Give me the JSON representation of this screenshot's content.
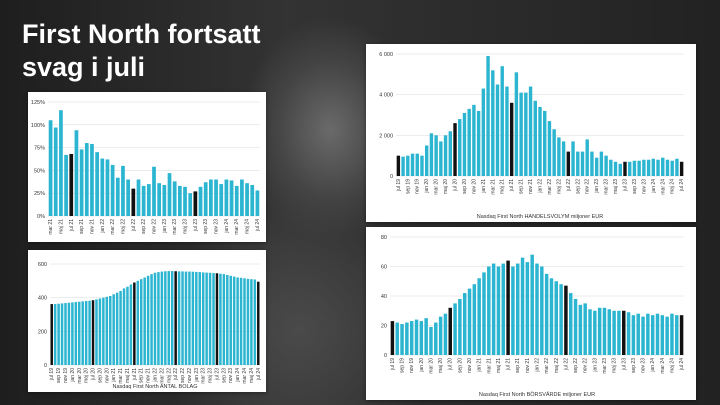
{
  "slide": {
    "title_line1": "First North fortsatt",
    "title_line2": "svag i juli"
  },
  "colors": {
    "bar": "#2bb5d0",
    "highlight": "#111111",
    "grid": "#d8d8d8"
  },
  "chart_data": [
    {
      "id": "p1",
      "type": "bar",
      "title": "",
      "xlabel": "",
      "ylabel": "",
      "ylim": [
        0,
        125
      ],
      "yticks": [
        0,
        25,
        50,
        75,
        100,
        125
      ],
      "ytick_labels": [
        "0%",
        "25%",
        "50%",
        "75%",
        "100%",
        "125%"
      ],
      "grid": true,
      "label_every": 2,
      "highlight_indices": [
        4,
        16,
        28
      ],
      "categories": [
        "mar 21",
        "apr 21",
        "maj 21",
        "jun 21",
        "jul 21",
        "aug 21",
        "sep 21",
        "okt 21",
        "nov 21",
        "dec 21",
        "jan 22",
        "feb 22",
        "mar 22",
        "apr 22",
        "maj 22",
        "jun 22",
        "jul 22",
        "aug 22",
        "sep 22",
        "okt 22",
        "nov 22",
        "dec 22",
        "jan 23",
        "feb 23",
        "mar 23",
        "apr 23",
        "maj 23",
        "jun 23",
        "jul 23",
        "aug 23",
        "sep 23",
        "okt 23",
        "nov 23",
        "dec 23",
        "jan 24",
        "feb 24",
        "mar 24",
        "apr 24",
        "maj 24",
        "jun 24",
        "jul 24"
      ],
      "values": [
        105,
        97,
        116,
        67,
        68,
        94,
        73,
        80,
        79,
        70,
        63,
        62,
        56,
        42,
        55,
        40,
        30,
        40,
        33,
        35,
        54,
        36,
        34,
        47,
        38,
        33,
        32,
        25,
        27,
        32,
        37,
        40,
        40,
        35,
        40,
        39,
        33,
        40,
        36,
        34,
        28
      ],
      "x_tick_labels": [
        "mar 21",
        "maj 21",
        "jul 21",
        "sep 21",
        "nov 21",
        "jan 22",
        "mar 22",
        "maj 22",
        "jul 22",
        "sep 22",
        "nov 22",
        "jan 23",
        "mar 23",
        "maj 23",
        "jul 23",
        "sep 23",
        "nov 23",
        "jan 24",
        "mar 24",
        "maj 24",
        "jul 24"
      ]
    },
    {
      "id": "p2",
      "type": "bar",
      "title": "",
      "xlabel": "Nasdaq First North HANDELSVOLYM miljoner EUR",
      "ylabel": "",
      "ylim": [
        0,
        6000
      ],
      "yticks": [
        0,
        2000,
        4000,
        6000
      ],
      "ytick_labels": [
        "0",
        "2 000",
        "4 000",
        "6 000"
      ],
      "grid": true,
      "label_every": 2,
      "highlight_indices": [
        0,
        12,
        24,
        36,
        48,
        60
      ],
      "categories": [
        "jul 19",
        "aug 19",
        "sep 19",
        "okt 19",
        "nov 19",
        "dec 19",
        "jan 20",
        "feb 20",
        "mar 20",
        "apr 20",
        "maj 20",
        "jun 20",
        "jul 20",
        "aug 20",
        "sep 20",
        "okt 20",
        "nov 20",
        "dec 20",
        "jan 21",
        "feb 21",
        "mar 21",
        "apr 21",
        "maj 21",
        "jun 21",
        "jul 21",
        "aug 21",
        "sep 21",
        "okt 21",
        "nov 21",
        "dec 21",
        "jan 22",
        "feb 22",
        "mar 22",
        "apr 22",
        "maj 22",
        "jun 22",
        "jul 22",
        "aug 22",
        "sep 22",
        "okt 22",
        "nov 22",
        "dec 22",
        "jan 23",
        "feb 23",
        "mar 23",
        "apr 23",
        "maj 23",
        "jun 23",
        "jul 23",
        "aug 23",
        "sep 23",
        "okt 23",
        "nov 23",
        "dec 23",
        "jan 24",
        "feb 24",
        "mar 24",
        "apr 24",
        "maj 24",
        "jun 24",
        "jul 24"
      ],
      "values": [
        1000,
        950,
        1000,
        1100,
        1100,
        1000,
        1500,
        2100,
        2000,
        1700,
        2000,
        2200,
        2600,
        2800,
        3100,
        3300,
        3500,
        3200,
        4300,
        5900,
        5200,
        4500,
        5400,
        4400,
        3600,
        5100,
        4100,
        4100,
        4400,
        3700,
        3400,
        3200,
        2700,
        2300,
        1900,
        1700,
        1200,
        1700,
        1200,
        1200,
        1800,
        1200,
        900,
        1200,
        1000,
        800,
        700,
        600,
        700,
        700,
        750,
        750,
        800,
        800,
        850,
        800,
        900,
        800,
        750,
        850,
        700
      ],
      "x_tick_labels": [
        "jul 19",
        "sep 19",
        "nov 19",
        "jan 20",
        "mar 20",
        "maj 20",
        "jul 20",
        "sep 20",
        "nov 20",
        "jan 21",
        "mar 21",
        "maj 21",
        "jul 21",
        "sep 21",
        "nov 21",
        "jan 22",
        "mar 22",
        "maj 22",
        "jul 22",
        "sep 22",
        "nov 22",
        "jan 23",
        "mar 23",
        "maj 23",
        "jul 23",
        "sep 23",
        "nov 23",
        "jan 24",
        "mar 24",
        "maj 24",
        "jul 24"
      ]
    },
    {
      "id": "p3",
      "type": "bar",
      "title": "",
      "xlabel": "Nasdaq First North ANTAL BOLAG",
      "ylabel": "",
      "ylim": [
        0,
        600
      ],
      "yticks": [
        0,
        200,
        400,
        600
      ],
      "ytick_labels": [
        "0",
        "200",
        "400",
        "600"
      ],
      "grid": true,
      "label_every": 2,
      "highlight_indices": [
        0,
        12,
        24,
        36,
        48,
        60
      ],
      "categories": [
        "jul 19",
        "aug 19",
        "sep 19",
        "okt 19",
        "nov 19",
        "dec 19",
        "jan 20",
        "feb 20",
        "mar 20",
        "apr 20",
        "maj 20",
        "jun 20",
        "jul 20",
        "aug 20",
        "sep 20",
        "okt 20",
        "nov 20",
        "dec 20",
        "jan 21",
        "feb 21",
        "mar 21",
        "apr 21",
        "maj 21",
        "jun 21",
        "jul 21",
        "aug 21",
        "sep 21",
        "okt 21",
        "nov 21",
        "dec 21",
        "jan 22",
        "feb 22",
        "mar 22",
        "apr 22",
        "maj 22",
        "jun 22",
        "jul 22",
        "aug 22",
        "sep 22",
        "okt 22",
        "nov 22",
        "dec 22",
        "jan 23",
        "feb 23",
        "mar 23",
        "apr 23",
        "maj 23",
        "jun 23",
        "jul 23",
        "aug 23",
        "sep 23",
        "okt 23",
        "nov 23",
        "dec 23",
        "jan 24",
        "feb 24",
        "mar 24",
        "apr 24",
        "maj 24",
        "jun 24",
        "jul 24"
      ],
      "values": [
        362,
        362,
        364,
        366,
        368,
        370,
        372,
        374,
        376,
        378,
        380,
        382,
        385,
        390,
        395,
        400,
        405,
        410,
        420,
        430,
        440,
        455,
        465,
        478,
        490,
        500,
        510,
        520,
        530,
        540,
        548,
        552,
        555,
        557,
        558,
        558,
        557,
        556,
        556,
        555,
        555,
        554,
        553,
        552,
        550,
        549,
        548,
        546,
        545,
        542,
        540,
        535,
        530,
        525,
        520,
        518,
        515,
        512,
        510,
        508,
        495
      ],
      "x_tick_labels": [
        "jul 19",
        "sep 19",
        "nov 19",
        "jan 20",
        "mar 20",
        "maj 20",
        "jul 20",
        "sep 20",
        "nov 20",
        "jan 21",
        "mar 21",
        "maj 21",
        "jul 21",
        "sep 21",
        "nov 21",
        "jan 22",
        "mar 22",
        "maj 22",
        "jul 22",
        "sep 22",
        "nov 22",
        "jan 23",
        "mar 23",
        "maj 23",
        "jul 23",
        "sep 23",
        "nov 23",
        "jan 24",
        "mar 24",
        "maj 24",
        "jul 24"
      ]
    },
    {
      "id": "p4",
      "type": "bar",
      "title": "",
      "xlabel": "Nasdaq First North BÖRSVÄRDE miljoner EUR",
      "ylabel": "",
      "ylim": [
        0,
        80
      ],
      "yticks": [
        0,
        20,
        40,
        60,
        80
      ],
      "ytick_labels": [
        "0",
        "20",
        "40",
        "60",
        "80"
      ],
      "grid": true,
      "label_every": 2,
      "highlight_indices": [
        0,
        12,
        24,
        36,
        48,
        60
      ],
      "categories": [
        "jul 19",
        "aug 19",
        "sep 19",
        "okt 19",
        "nov 19",
        "dec 19",
        "jan 20",
        "feb 20",
        "mar 20",
        "apr 20",
        "maj 20",
        "jun 20",
        "jul 20",
        "aug 20",
        "sep 20",
        "okt 20",
        "nov 20",
        "dec 20",
        "jan 21",
        "feb 21",
        "mar 21",
        "apr 21",
        "maj 21",
        "jun 21",
        "jul 21",
        "aug 21",
        "sep 21",
        "okt 21",
        "nov 21",
        "dec 21",
        "jan 22",
        "feb 22",
        "mar 22",
        "apr 22",
        "maj 22",
        "jun 22",
        "jul 22",
        "aug 22",
        "sep 22",
        "okt 22",
        "nov 22",
        "dec 22",
        "jan 23",
        "feb 23",
        "mar 23",
        "apr 23",
        "maj 23",
        "jun 23",
        "jul 23",
        "aug 23",
        "sep 23",
        "okt 23",
        "nov 23",
        "dec 23",
        "jan 24",
        "feb 24",
        "mar 24",
        "apr 24",
        "maj 24",
        "jun 24",
        "jul 24"
      ],
      "values": [
        23,
        22,
        21,
        22,
        23,
        24,
        23,
        25,
        19,
        22,
        26,
        28,
        32,
        35,
        38,
        42,
        45,
        48,
        52,
        56,
        60,
        62,
        60,
        62,
        64,
        60,
        62,
        66,
        63,
        68,
        62,
        60,
        55,
        52,
        50,
        48,
        47,
        42,
        38,
        34,
        35,
        31,
        30,
        32,
        32,
        31,
        30,
        30,
        30,
        29,
        27,
        28,
        26,
        28,
        27,
        28,
        27,
        26,
        28,
        27,
        27
      ],
      "x_tick_labels": [
        "jul 19",
        "sep 19",
        "nov 19",
        "jan 20",
        "mar 20",
        "maj 20",
        "jul 20",
        "sep 20",
        "nov 20",
        "jan 21",
        "mar 21",
        "maj 21",
        "jul 21",
        "sep 21",
        "nov 21",
        "jan 22",
        "mar 22",
        "maj 22",
        "jul 22",
        "sep 22",
        "nov 22",
        "jan 23",
        "mar 23",
        "maj 23",
        "jul 23",
        "sep 23",
        "nov 23",
        "jan 24",
        "mar 24",
        "maj 24",
        "jul 24"
      ]
    }
  ]
}
